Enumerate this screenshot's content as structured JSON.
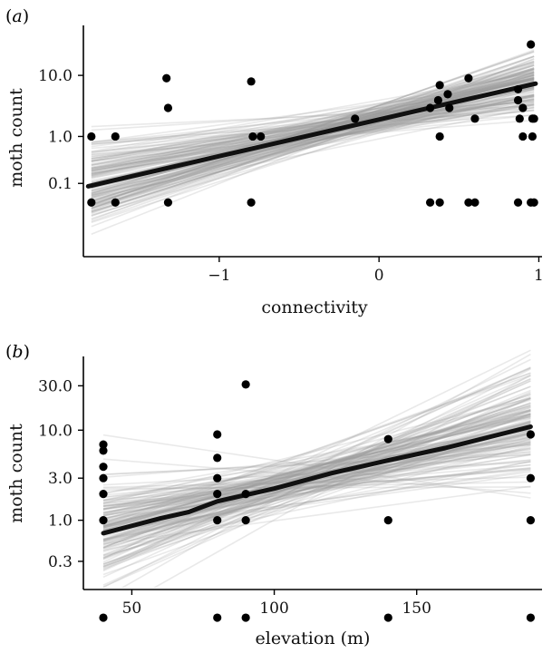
{
  "chart_data": [
    {
      "type": "scatter",
      "panel_label": "(a)",
      "xlabel": "connectivity",
      "ylabel": "moth count",
      "y_scale": "log10(count+0.1)",
      "xlim": [
        -1.85,
        1.02
      ],
      "ylim": [
        0.014,
        62
      ],
      "x_ticks": [
        -1,
        0,
        1
      ],
      "x_tick_labels": [
        "−1",
        "0",
        "1"
      ],
      "y_ticks": [
        0.1,
        1.0,
        10.0
      ],
      "y_tick_labels": [
        "0.1",
        "1.0",
        "10.0"
      ],
      "grid": false,
      "legend": "none",
      "points": [
        {
          "x": -1.8,
          "y": 1
        },
        {
          "x": -1.65,
          "y": 1
        },
        {
          "x": -1.33,
          "y": 9
        },
        {
          "x": -1.32,
          "y": 3
        },
        {
          "x": -0.8,
          "y": 8
        },
        {
          "x": -0.79,
          "y": 1
        },
        {
          "x": -0.74,
          "y": 1
        },
        {
          "x": -0.15,
          "y": 2
        },
        {
          "x": 0.32,
          "y": 3
        },
        {
          "x": 0.37,
          "y": 4
        },
        {
          "x": 0.38,
          "y": 7
        },
        {
          "x": 0.38,
          "y": 1
        },
        {
          "x": 0.43,
          "y": 5
        },
        {
          "x": 0.44,
          "y": 3
        },
        {
          "x": 0.56,
          "y": 9
        },
        {
          "x": 0.6,
          "y": 2
        },
        {
          "x": 0.87,
          "y": 6
        },
        {
          "x": 0.87,
          "y": 4
        },
        {
          "x": 0.88,
          "y": 2
        },
        {
          "x": 0.9,
          "y": 3
        },
        {
          "x": 0.9,
          "y": 1
        },
        {
          "x": 0.95,
          "y": 31
        },
        {
          "x": 0.96,
          "y": 1
        },
        {
          "x": 0.96,
          "y": 2
        },
        {
          "x": 0.97,
          "y": 2
        },
        {
          "x": -1.8,
          "y": 0
        },
        {
          "x": -1.65,
          "y": 0
        },
        {
          "x": -1.32,
          "y": 0
        },
        {
          "x": -0.8,
          "y": 0
        },
        {
          "x": 0.32,
          "y": 0
        },
        {
          "x": 0.38,
          "y": 0
        },
        {
          "x": 0.56,
          "y": 0
        },
        {
          "x": 0.6,
          "y": 0
        },
        {
          "x": 0.87,
          "y": 0
        },
        {
          "x": 0.95,
          "y": 0
        },
        {
          "x": 0.97,
          "y": 0
        }
      ],
      "fit_line": {
        "x": [
          -1.82,
          0.98
        ],
        "y": [
          0.18,
          7.5
        ]
      },
      "posterior_lines": {
        "count": 150,
        "pivot_x": -0.1,
        "pivot_y": 1.85,
        "slope_mean": 0.575,
        "slope_sd": 0.2,
        "intercept_sd": 0.12
      }
    },
    {
      "type": "scatter",
      "panel_label": "(b)",
      "xlabel": "elevation (m)",
      "ylabel": "moth count",
      "y_scale": "log10(count+0.1)",
      "xlim": [
        33,
        194
      ],
      "ylim": [
        0.2,
        62
      ],
      "x_ticks": [
        50,
        100,
        150
      ],
      "x_tick_labels": [
        "50",
        "100",
        "150"
      ],
      "y_ticks": [
        0.3,
        1.0,
        3.0,
        10.0,
        30.0
      ],
      "y_tick_labels": [
        "0.3",
        "1.0",
        "3.0",
        "10.0",
        "30.0"
      ],
      "grid": false,
      "legend": "none",
      "points": [
        {
          "x": 40,
          "y": 7
        },
        {
          "x": 40,
          "y": 6
        },
        {
          "x": 40,
          "y": 4
        },
        {
          "x": 40,
          "y": 3
        },
        {
          "x": 40,
          "y": 2
        },
        {
          "x": 40,
          "y": 1
        },
        {
          "x": 80,
          "y": 9
        },
        {
          "x": 80,
          "y": 5
        },
        {
          "x": 80,
          "y": 3
        },
        {
          "x": 80,
          "y": 2
        },
        {
          "x": 80,
          "y": 1
        },
        {
          "x": 90,
          "y": 31
        },
        {
          "x": 90,
          "y": 2
        },
        {
          "x": 90,
          "y": 1
        },
        {
          "x": 140,
          "y": 8
        },
        {
          "x": 140,
          "y": 1
        },
        {
          "x": 190,
          "y": 9
        },
        {
          "x": 190,
          "y": 3
        },
        {
          "x": 190,
          "y": 1
        },
        {
          "x": 40,
          "y": 0
        },
        {
          "x": 80,
          "y": 0
        },
        {
          "x": 90,
          "y": 0
        },
        {
          "x": 140,
          "y": 0
        },
        {
          "x": 190,
          "y": 0
        }
      ],
      "fit_line": {
        "x": [
          40,
          60,
          70,
          80,
          100,
          120,
          140,
          160,
          190
        ],
        "y": [
          0.8,
          1.15,
          1.35,
          1.75,
          2.4,
          3.5,
          4.8,
          6.5,
          11
        ]
      },
      "posterior_lines": {
        "count": 150,
        "pivot_x": 112,
        "pivot_y": 3.1,
        "slope_mean": 0.0077,
        "slope_sd": 0.0035,
        "intercept_sd": 0.12
      }
    }
  ]
}
